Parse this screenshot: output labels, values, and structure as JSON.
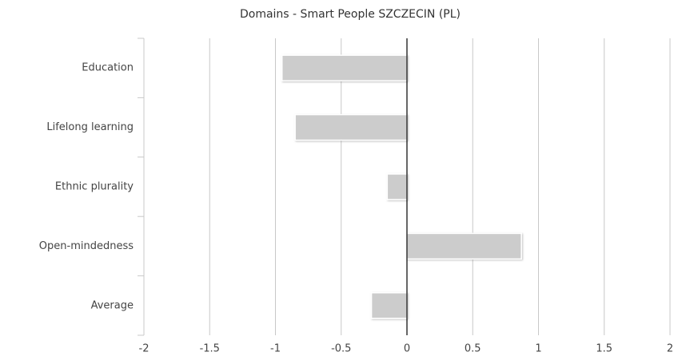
{
  "chart_data": {
    "type": "bar",
    "orientation": "horizontal",
    "title": "Domains - Smart People SZCZECIN (PL)",
    "categories": [
      "Education",
      "Lifelong learning",
      "Ethnic plurality",
      "Open-mindedness",
      "Average"
    ],
    "values": [
      -0.95,
      -0.85,
      -0.15,
      0.87,
      -0.27
    ],
    "color": "#cccccc",
    "xlim": [
      -2,
      2
    ],
    "xticks": [
      -2,
      -1.5,
      -1,
      -0.5,
      0,
      0.5,
      1,
      1.5,
      2
    ],
    "grid": true
  }
}
